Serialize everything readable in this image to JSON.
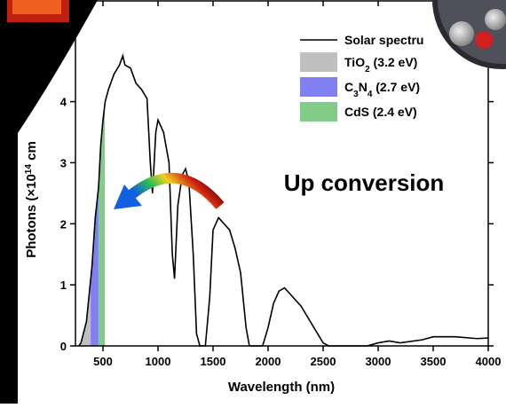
{
  "chart_data": {
    "type": "line",
    "x_label": "Wavelength (nm)",
    "y_label": [
      {
        "text": "Photons (×10"
      },
      {
        "text": "14",
        "sup": true
      },
      {
        "text": " cm"
      }
    ],
    "annotation": "Up conversion",
    "xlim": [
      250,
      4000
    ],
    "ylim": [
      0,
      5.65
    ],
    "xticks": [
      500,
      1000,
      1500,
      2000,
      2500,
      3000,
      3500,
      4000
    ],
    "yticks": [
      0,
      1,
      2,
      3,
      4
    ],
    "series": [
      {
        "name": "Solar spectru",
        "color": "#000000",
        "x": [
          280,
          300,
          350,
          400,
          430,
          460,
          480,
          500,
          520,
          550,
          600,
          650,
          680,
          700,
          750,
          800,
          850,
          900,
          930,
          950,
          980,
          1000,
          1050,
          1100,
          1130,
          1150,
          1180,
          1220,
          1250,
          1280,
          1320,
          1350,
          1380,
          1430,
          1470,
          1500,
          1550,
          1600,
          1650,
          1700,
          1750,
          1800,
          1830,
          1950,
          2000,
          2050,
          2100,
          2150,
          2200,
          2300,
          2400,
          2500,
          2550,
          2900,
          3000,
          3100,
          3200,
          3400,
          3500,
          3700,
          3900,
          4000
        ],
        "values": [
          0,
          0.05,
          0.4,
          1.3,
          2.1,
          2.6,
          3.3,
          3.7,
          4.0,
          4.2,
          4.45,
          4.6,
          4.75,
          4.6,
          4.55,
          4.3,
          4.2,
          4.05,
          3.0,
          2.5,
          3.5,
          3.7,
          3.5,
          3.0,
          1.5,
          1.1,
          2.3,
          2.8,
          2.9,
          2.7,
          1.5,
          0.2,
          0,
          0,
          0.8,
          1.9,
          2.1,
          2.0,
          1.9,
          1.6,
          1.2,
          0.3,
          0,
          0,
          0.3,
          0.7,
          0.9,
          0.95,
          0.85,
          0.65,
          0.35,
          0.05,
          0,
          0,
          0.05,
          0.08,
          0.05,
          0.1,
          0.15,
          0.15,
          0.12,
          0.13
        ]
      }
    ],
    "bands": [
      {
        "label": [
          {
            "text": "TiO"
          },
          {
            "text": "2",
            "sub": true
          },
          {
            "text": " (3.2 eV)"
          }
        ],
        "color": "#c0c0c0",
        "x": [
          280,
          388
        ]
      },
      {
        "label": [
          {
            "text": "C"
          },
          {
            "text": "3",
            "sub": true
          },
          {
            "text": "N"
          },
          {
            "text": "4",
            "sub": true
          },
          {
            "text": " (2.7 eV)"
          }
        ],
        "color": "#8080f0",
        "x": [
          388,
          459
        ]
      },
      {
        "label": [
          {
            "text": "CdS (2.4 eV)"
          }
        ],
        "color": "#80cc88",
        "x": [
          459,
          517
        ]
      }
    ]
  }
}
